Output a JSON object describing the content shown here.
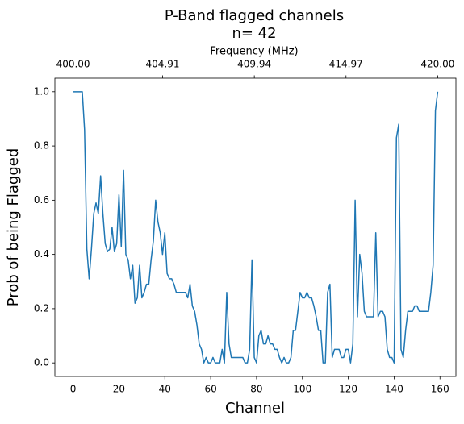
{
  "chart_data": {
    "type": "line",
    "title": "P-Band flagged channels",
    "subtitle": "n= 42",
    "x_label": "Channel",
    "y_label": "Prob of being Flagged",
    "x2_label": "Frequency (MHz)",
    "color": "#1f77b4",
    "x": [
      0,
      1,
      2,
      3,
      4,
      5,
      6,
      7,
      8,
      9,
      10,
      11,
      12,
      13,
      14,
      15,
      16,
      17,
      18,
      19,
      20,
      21,
      22,
      23,
      24,
      25,
      26,
      27,
      28,
      29,
      30,
      31,
      32,
      33,
      34,
      35,
      36,
      37,
      38,
      39,
      40,
      41,
      42,
      43,
      44,
      45,
      46,
      47,
      48,
      49,
      50,
      51,
      52,
      53,
      54,
      55,
      56,
      57,
      58,
      59,
      60,
      61,
      62,
      63,
      64,
      65,
      66,
      67,
      68,
      69,
      70,
      71,
      72,
      73,
      74,
      75,
      76,
      77,
      78,
      79,
      80,
      81,
      82,
      83,
      84,
      85,
      86,
      87,
      88,
      89,
      90,
      91,
      92,
      93,
      94,
      95,
      96,
      97,
      98,
      99,
      100,
      101,
      102,
      103,
      104,
      105,
      106,
      107,
      108,
      109,
      110,
      111,
      112,
      113,
      114,
      115,
      116,
      117,
      118,
      119,
      120,
      121,
      122,
      123,
      124,
      125,
      126,
      127,
      128,
      129,
      130,
      131,
      132,
      133,
      134,
      135,
      136,
      137,
      138,
      139,
      140,
      141,
      142,
      143,
      144,
      145,
      146,
      147,
      148,
      149,
      150,
      151,
      152,
      153,
      154,
      155,
      156,
      157,
      158,
      159
    ],
    "values": [
      1.0,
      1.0,
      1.0,
      1.0,
      1.0,
      0.86,
      0.42,
      0.31,
      0.42,
      0.55,
      0.59,
      0.55,
      0.69,
      0.55,
      0.44,
      0.41,
      0.42,
      0.5,
      0.41,
      0.44,
      0.62,
      0.43,
      0.71,
      0.4,
      0.38,
      0.31,
      0.36,
      0.22,
      0.24,
      0.36,
      0.24,
      0.26,
      0.29,
      0.29,
      0.38,
      0.45,
      0.6,
      0.52,
      0.48,
      0.4,
      0.48,
      0.33,
      0.31,
      0.31,
      0.29,
      0.26,
      0.26,
      0.26,
      0.26,
      0.26,
      0.24,
      0.29,
      0.21,
      0.19,
      0.14,
      0.07,
      0.05,
      0.0,
      0.02,
      0.0,
      0.0,
      0.02,
      0.0,
      0.0,
      0.0,
      0.05,
      0.0,
      0.26,
      0.07,
      0.02,
      0.02,
      0.02,
      0.02,
      0.02,
      0.02,
      0.0,
      0.0,
      0.05,
      0.38,
      0.02,
      0.0,
      0.1,
      0.12,
      0.07,
      0.07,
      0.1,
      0.07,
      0.07,
      0.05,
      0.05,
      0.02,
      0.0,
      0.02,
      0.0,
      0.0,
      0.02,
      0.12,
      0.12,
      0.19,
      0.26,
      0.24,
      0.24,
      0.26,
      0.24,
      0.24,
      0.21,
      0.17,
      0.12,
      0.12,
      0.0,
      0.0,
      0.26,
      0.29,
      0.02,
      0.05,
      0.05,
      0.05,
      0.02,
      0.02,
      0.05,
      0.05,
      0.0,
      0.07,
      0.6,
      0.17,
      0.4,
      0.33,
      0.19,
      0.17,
      0.17,
      0.17,
      0.17,
      0.48,
      0.17,
      0.19,
      0.19,
      0.17,
      0.05,
      0.02,
      0.02,
      0.0,
      0.83,
      0.88,
      0.05,
      0.02,
      0.12,
      0.19,
      0.19,
      0.19,
      0.21,
      0.21,
      0.19,
      0.19,
      0.19,
      0.19,
      0.19,
      0.26,
      0.36,
      0.93,
      1.0
    ],
    "xlim": [
      -7.95,
      166.95
    ],
    "xticks": [
      0,
      20,
      40,
      60,
      80,
      100,
      120,
      140,
      160
    ],
    "ylim": [
      -0.05,
      1.05
    ],
    "yticks": [
      {
        "value": 0,
        "label": "0.0"
      },
      0.2,
      0.4,
      0.6,
      0.8,
      {
        "value": 1,
        "label": "1.0"
      }
    ],
    "x2lim": [
      399.0,
      421.0
    ],
    "x2ticks": [
      {
        "value": 400,
        "label": "400.00"
      },
      404.91,
      409.94,
      414.97,
      {
        "value": 420,
        "label": "420.00"
      }
    ]
  }
}
